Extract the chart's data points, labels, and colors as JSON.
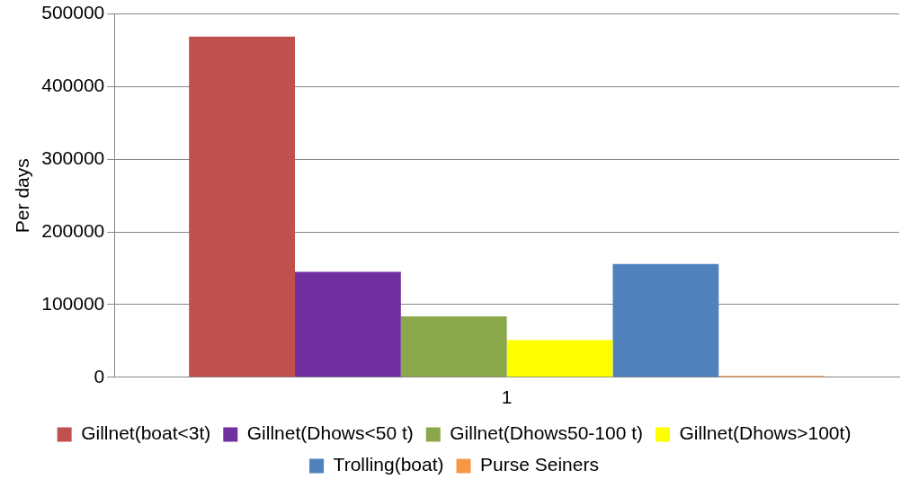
{
  "chart_data": {
    "type": "bar",
    "ylabel": "Per days",
    "categories": [
      "1"
    ],
    "series": [
      {
        "name": "Gillnet(boat<3t)",
        "color": "#c0504d",
        "values": [
          469000
        ]
      },
      {
        "name": "Gillnet(Dhows<50 t)",
        "color": "#7030a0",
        "values": [
          145000
        ]
      },
      {
        "name": "Gillnet(Dhows50-100 t)",
        "color": "#8aa84b",
        "values": [
          84000
        ]
      },
      {
        "name": "Gillnet(Dhows>100t)",
        "color": "#ffff00",
        "values": [
          51000
        ]
      },
      {
        "name": "Trolling(boat)",
        "color": "#4f81bd",
        "values": [
          156000
        ]
      },
      {
        "name": "Purse Seiners",
        "color": "#f79646",
        "values": [
          2000
        ]
      }
    ],
    "ylim": [
      0,
      500000
    ],
    "yticks": [
      0,
      100000,
      200000,
      300000,
      400000,
      500000
    ],
    "grid": "y",
    "legend": "bottom"
  }
}
